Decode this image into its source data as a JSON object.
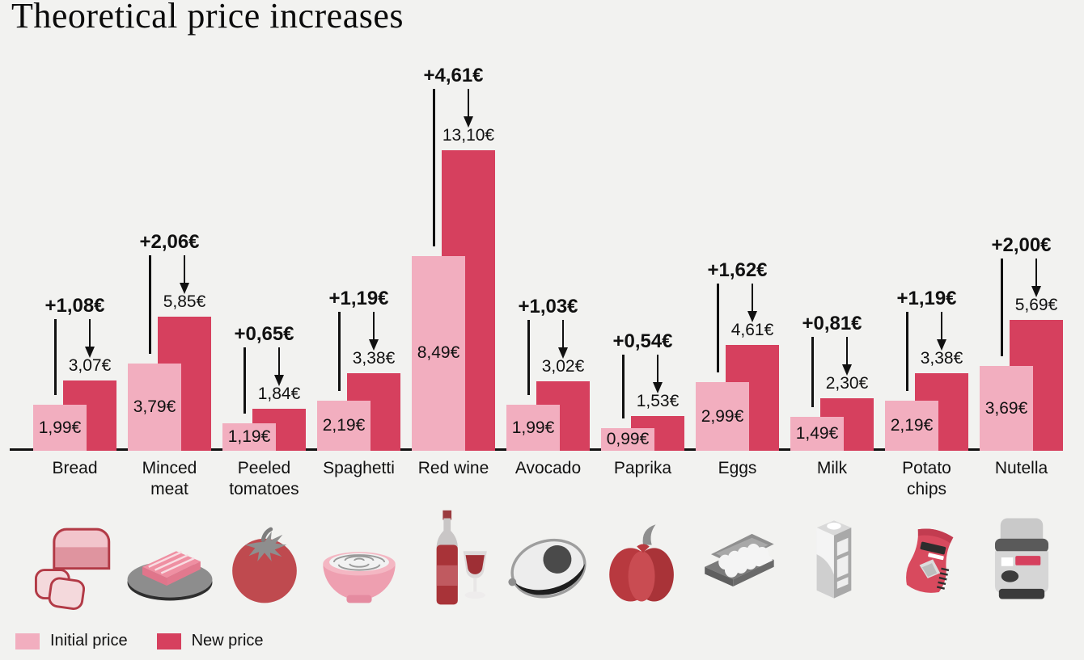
{
  "title": "Theoretical price increases",
  "colors": {
    "background": "#f2f2f0",
    "initial_bar": "#f2aebf",
    "new_bar": "#d6405e",
    "text": "#111111"
  },
  "legend": {
    "initial": {
      "label": "Initial price",
      "color": "#f2aebf"
    },
    "new": {
      "label": "New price",
      "color": "#d6405e"
    }
  },
  "chart_data": {
    "type": "bar",
    "title": "Theoretical price increases",
    "categories": [
      "Bread",
      "Minced meat",
      "Peeled tomatoes",
      "Spaghetti",
      "Red wine",
      "Avocado",
      "Paprika",
      "Eggs",
      "Milk",
      "Potato chips",
      "Nutella"
    ],
    "series": [
      {
        "name": "Initial price",
        "values": [
          1.99,
          3.79,
          1.19,
          2.19,
          8.49,
          1.99,
          0.99,
          2.99,
          1.49,
          2.19,
          3.69
        ]
      },
      {
        "name": "New price",
        "values": [
          3.07,
          5.85,
          1.84,
          3.38,
          13.1,
          3.02,
          1.53,
          4.61,
          2.3,
          3.38,
          5.69
        ]
      }
    ],
    "increases": [
      1.08,
      2.06,
      0.65,
      1.19,
      4.61,
      1.03,
      0.54,
      1.62,
      0.81,
      1.19,
      2.0
    ],
    "unit": "€",
    "decimal_separator": ",",
    "ylim": [
      0,
      14
    ],
    "grid": false,
    "legend_position": "bottom-left"
  },
  "items": [
    {
      "label": "Bread",
      "initial_label": "1,99€",
      "new_label": "3,07€",
      "increase_label": "+1,08€",
      "icon": "bread-icon"
    },
    {
      "label": "Minced\nmeat",
      "initial_label": "3,79€",
      "new_label": "5,85€",
      "increase_label": "+2,06€",
      "icon": "minced-meat-icon"
    },
    {
      "label": "Peeled\ntomatoes",
      "initial_label": "1,19€",
      "new_label": "1,84€",
      "increase_label": "+0,65€",
      "icon": "tomato-icon"
    },
    {
      "label": "Spaghetti",
      "initial_label": "2,19€",
      "new_label": "3,38€",
      "increase_label": "+1,19€",
      "icon": "spaghetti-icon"
    },
    {
      "label": "Red wine",
      "initial_label": "8,49€",
      "new_label": "13,10€",
      "increase_label": "+4,61€",
      "icon": "red-wine-icon"
    },
    {
      "label": "Avocado",
      "initial_label": "1,99€",
      "new_label": "3,02€",
      "increase_label": "+1,03€",
      "icon": "avocado-icon"
    },
    {
      "label": "Paprika",
      "initial_label": "0,99€",
      "new_label": "1,53€",
      "increase_label": "+0,54€",
      "icon": "paprika-icon"
    },
    {
      "label": "Eggs",
      "initial_label": "2,99€",
      "new_label": "4,61€",
      "increase_label": "+1,62€",
      "icon": "eggs-icon"
    },
    {
      "label": "Milk",
      "initial_label": "1,49€",
      "new_label": "2,30€",
      "increase_label": "+0,81€",
      "icon": "milk-icon"
    },
    {
      "label": "Potato\nchips",
      "initial_label": "2,19€",
      "new_label": "3,38€",
      "increase_label": "+1,19€",
      "icon": "potato-chips-icon"
    },
    {
      "label": "Nutella",
      "initial_label": "3,69€",
      "new_label": "5,69€",
      "increase_label": "+2,00€",
      "icon": "nutella-icon"
    }
  ]
}
